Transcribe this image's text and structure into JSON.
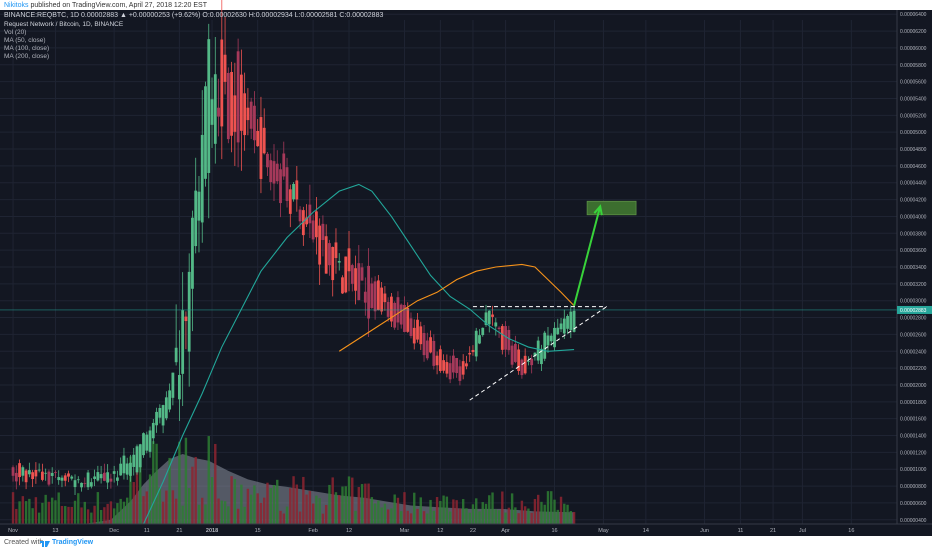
{
  "header": {
    "author": "Nikitoks",
    "published": " published on TradingView.com, April 27, 2018 12:20 EST",
    "symbol_line": "BINANCE:REQBTC, 1D  0.00002883 ▲ +0.00000253 (+9.62%) O:0.00002630 H:0.00002934 L:0.00002581 C:0.00002883",
    "title": "Request Network / Bitcoin, 1D, BINANCE"
  },
  "indicators": [
    "Vol (20)",
    "MA (50, close)",
    "MA (100, close)",
    "MA (200, close)"
  ],
  "footer": {
    "created_with": "Created with",
    "brand": "TradingView"
  },
  "colors": {
    "background": "#131722",
    "up": "#26a69a",
    "up_bright": "#53b987",
    "down": "#ef5350",
    "down_dark": "#a6395a",
    "ma50": "#22a79a",
    "ma100": "#f7931a",
    "arrow": "#38d33a",
    "target_box": "#3c6e2f",
    "grid": "#1f2433",
    "axis_text": "#b2b5be",
    "price_label_bg": "#26a69a"
  },
  "chart_data": {
    "type": "candlestick",
    "symbol": "REQBTC",
    "exchange": "BINANCE",
    "interval": "1D",
    "y_ticks": [
      "0.00006400",
      "0.00006200",
      "0.00006000",
      "0.00005800",
      "0.00005600",
      "0.00005400",
      "0.00005200",
      "0.00005000",
      "0.00004800",
      "0.00004600",
      "0.00004400",
      "0.00004200",
      "0.00004000",
      "0.00003800",
      "0.00003600",
      "0.00003400",
      "0.00003200",
      "0.00003000",
      "0.00002800",
      "0.00002600",
      "0.00002400",
      "0.00002200",
      "0.00002000",
      "0.00001800",
      "0.00001600",
      "0.00001400",
      "0.00001200",
      "0.00001000",
      "0.00000800",
      "0.00000600",
      "0.00000400"
    ],
    "current_price_label": "0.00002883",
    "ylim": [
      3.5e-06,
      6.45e-05
    ],
    "x_ticks": [
      "Nov",
      "13",
      "Dec",
      "11",
      "21",
      "2018",
      "15",
      "Feb",
      "12",
      "Mar",
      "12",
      "22",
      "Apr",
      "16",
      "May",
      "14",
      "Jun",
      "11",
      "21",
      "Jul",
      "16"
    ],
    "x_tick_days": [
      0,
      13,
      31,
      41,
      51,
      61,
      75,
      92,
      103,
      120,
      131,
      141,
      151,
      166,
      181,
      194,
      212,
      223,
      233,
      242,
      257
    ],
    "x_range_days": [
      -4,
      271
    ],
    "segments": [
      [
        0,
        1.05e-05,
        9.5e-06,
        8.5e-06
      ],
      [
        10,
        9.2e-06,
        9e-06,
        8e-06
      ],
      [
        20,
        8.5e-06,
        9e-06,
        8.2e-06
      ],
      [
        30,
        8.8e-06,
        9e-06,
        1e-05
      ],
      [
        38,
        9.5e-06,
        1.25e-05,
        1.4e-05
      ],
      [
        44,
        1.45e-05,
        1.6e-05,
        1.8e-05
      ],
      [
        50,
        1.9e-05,
        2.2e-05,
        2.7e-05
      ],
      [
        56,
        3.2e-05,
        4.2e-05,
        6.2e-05
      ],
      [
        60,
        4.8e-05,
        5.8e-05,
        6.3e-05
      ],
      [
        64,
        5.8e-05,
        5.5e-05,
        5.7e-05
      ],
      [
        70,
        5.6e-05,
        5.1e-05,
        5.3e-05
      ],
      [
        78,
        4.8e-05,
        4.5e-05,
        4.6e-05
      ],
      [
        86,
        4.4e-05,
        4.2e-05,
        4.3e-05
      ],
      [
        92,
        4e-05,
        3.75e-05,
        3.85e-05
      ],
      [
        100,
        3.5e-05,
        3.3e-05,
        3.35e-05
      ],
      [
        108,
        3.3e-05,
        3e-05,
        3.1e-05
      ],
      [
        114,
        3.1e-05,
        2.9e-05,
        2.8e-05
      ],
      [
        120,
        2.9e-05,
        2.6e-05,
        2.65e-05
      ],
      [
        128,
        2.5e-05,
        2.35e-05,
        2.4e-05
      ],
      [
        134,
        2.3e-05,
        2.15e-05,
        2.2e-05
      ],
      [
        138,
        2.2e-05,
        2.05e-05,
        1.95e-05
      ],
      [
        142,
        2.4e-05,
        2.6e-05,
        2.8e-05
      ],
      [
        146,
        2.8e-05,
        2.9e-05,
        2.85e-05
      ],
      [
        150,
        2.7e-05,
        2.5e-05,
        2.4e-05
      ],
      [
        156,
        2.3e-05,
        2.15e-05,
        2.15e-05
      ],
      [
        162,
        2.3e-05,
        2.5e-05,
        2.6e-05
      ],
      [
        168,
        2.6e-05,
        2.7e-05,
        2.6e-05
      ],
      [
        172,
        2.7e-05,
        2.83e-05,
        2.88e-05
      ]
    ],
    "ma50": [
      [
        40,
        3.5e-06
      ],
      [
        46,
        8.5e-06
      ],
      [
        52,
        1.4e-05
      ],
      [
        58,
        1.9e-05
      ],
      [
        64,
        2.45e-05
      ],
      [
        70,
        2.9e-05
      ],
      [
        76,
        3.35e-05
      ],
      [
        84,
        3.75e-05
      ],
      [
        92,
        4.05e-05
      ],
      [
        100,
        4.3e-05
      ],
      [
        106,
        4.38e-05
      ],
      [
        110,
        4.3e-05
      ],
      [
        116,
        4e-05
      ],
      [
        122,
        3.65e-05
      ],
      [
        128,
        3.3e-05
      ],
      [
        134,
        3.05e-05
      ],
      [
        140,
        2.9e-05
      ],
      [
        146,
        2.7e-05
      ],
      [
        152,
        2.55e-05
      ],
      [
        158,
        2.45e-05
      ],
      [
        164,
        2.4e-05
      ],
      [
        172,
        2.42e-05
      ]
    ],
    "ma100": [
      [
        100,
        2.4e-05
      ],
      [
        106,
        2.55e-05
      ],
      [
        112,
        2.7e-05
      ],
      [
        118,
        2.85e-05
      ],
      [
        124,
        3e-05
      ],
      [
        130,
        3.1e-05
      ],
      [
        136,
        3.25e-05
      ],
      [
        142,
        3.35e-05
      ],
      [
        148,
        3.4e-05
      ],
      [
        156,
        3.43e-05
      ],
      [
        160,
        3.4e-05
      ],
      [
        164,
        3.25e-05
      ],
      [
        168,
        3.1e-05
      ],
      [
        172,
        2.94e-05
      ]
    ],
    "volume_shape": [
      [
        0,
        2.65e-06
      ],
      [
        10,
        3.4e-06
      ],
      [
        20,
        3.4e-06
      ],
      [
        30,
        4e-06
      ],
      [
        36,
        6.2e-06
      ],
      [
        40,
        8.2e-06
      ],
      [
        44,
        9.8e-06
      ],
      [
        48,
        1.12e-05
      ],
      [
        52,
        1.18e-05
      ],
      [
        56,
        1.13e-05
      ],
      [
        60,
        1.1e-05
      ],
      [
        66,
        9.8e-06
      ],
      [
        72,
        8.8e-06
      ],
      [
        78,
        8.2e-06
      ],
      [
        84,
        7.9e-06
      ],
      [
        92,
        7.4e-06
      ],
      [
        100,
        6.9e-06
      ],
      [
        108,
        6.6e-06
      ],
      [
        114,
        6.2e-06
      ],
      [
        122,
        5.7e-06
      ],
      [
        130,
        5.5e-06
      ],
      [
        140,
        5.3e-06
      ],
      [
        150,
        5.3e-06
      ],
      [
        160,
        5e-06
      ],
      [
        172,
        4.9e-06
      ]
    ],
    "annotations": {
      "resistance": {
        "label": "",
        "price": 2.93e-05,
        "day_range": [
          141,
          182
        ]
      },
      "support": [
        [
          140,
          1.82e-05
        ],
        [
          182,
          2.93e-05
        ]
      ],
      "arrow_path": [
        [
          172,
          2.94e-05
        ],
        [
          180,
          4.12e-05
        ]
      ],
      "target_box": {
        "day_range": [
          176,
          191
        ],
        "price_range": [
          4.02e-05,
          4.18e-05
        ]
      },
      "price_line": 2.89e-05
    }
  }
}
